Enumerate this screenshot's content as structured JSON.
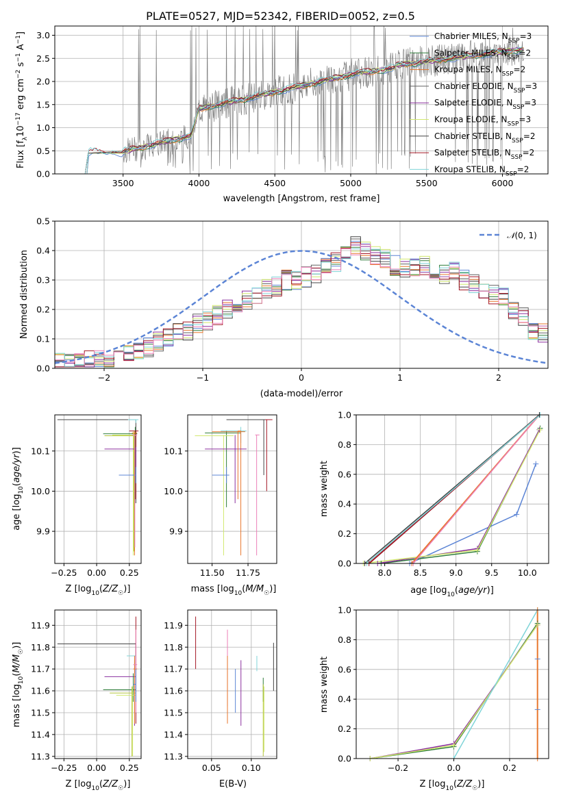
{
  "colors": {
    "blue": "#5b84d5",
    "orange": "#e8772d",
    "darkgreen": "#2f7d3a",
    "red": "#a31523",
    "purple": "#8a2f9e",
    "brown": "#7b4b2a",
    "pink": "#ec7fb7",
    "gray": "#606060",
    "olive": "#b3c43a",
    "cyan": "#7fd4d8",
    "yellowgreen": "#d1e86e",
    "black": "#444444"
  },
  "chart_data": [
    {
      "type": "line",
      "title": "PLATE=0527, MJD=52342, FIBERID=0052, z=0.5",
      "xlabel": "wavelength [Angstrom, rest frame]",
      "ylabel": "Flux [f_λ 10^-17 erg cm^-2 s^-1 A^-1]",
      "xlim": [
        3050,
        6300
      ],
      "ylim": [
        0,
        3.2
      ],
      "xticks": [
        3500,
        4000,
        4500,
        5000,
        5500,
        6000
      ],
      "yticks": [
        0.0,
        0.5,
        1.0,
        1.5,
        2.0,
        2.5,
        3.0
      ],
      "observed_range": [
        3500,
        6140
      ],
      "model_range": [
        3250,
        6140
      ],
      "legend": "top-right",
      "series": [
        {
          "name": "Chabrier MILES, N_SSP=3",
          "color": "#5b84d5"
        },
        {
          "name": "Salpeter MILES, N_SSP=2",
          "color": "#2f7d3a"
        },
        {
          "name": "Kroupa MILES, N_SSP=2",
          "color": "#e8772d"
        },
        {
          "name": "Chabrier ELODIE, N_SSP=3",
          "color": "#606060"
        },
        {
          "name": "Salpeter ELODIE, N_SSP=3",
          "color": "#8a2f9e"
        },
        {
          "name": "Kroupa ELODIE, N_SSP=3",
          "color": "#d1e86e"
        },
        {
          "name": "Chabrier STELIB, N_SSP=2",
          "color": "#444444"
        },
        {
          "name": "Salpeter STELIB, N_SSP=2",
          "color": "#a31523"
        },
        {
          "name": "Kroupa STELIB, N_SSP=2",
          "color": "#7fd4d8"
        }
      ]
    },
    {
      "type": "bar",
      "xlabel": "(data-model)/error",
      "ylabel": "Normed distribution",
      "xlim": [
        -2.5,
        2.5
      ],
      "ylim": [
        0,
        0.5
      ],
      "xticks": [
        -2,
        -1,
        0,
        1,
        2
      ],
      "yticks": [
        0.0,
        0.1,
        0.2,
        0.3,
        0.4,
        0.5
      ],
      "bin_width": 0.1,
      "legend": "top-right",
      "reference_name": "N(0,1)",
      "representative_hist": [
        0.025,
        0.02,
        0.02,
        0.025,
        0.03,
        0.03,
        0.04,
        0.05,
        0.06,
        0.07,
        0.09,
        0.1,
        0.12,
        0.13,
        0.15,
        0.16,
        0.18,
        0.2,
        0.2,
        0.23,
        0.25,
        0.27,
        0.28,
        0.3,
        0.3,
        0.31,
        0.32,
        0.34,
        0.36,
        0.38,
        0.42,
        0.4,
        0.38,
        0.37,
        0.35,
        0.34,
        0.34,
        0.35,
        0.33,
        0.32,
        0.33,
        0.3,
        0.29,
        0.27,
        0.25,
        0.24,
        0.2,
        0.18,
        0.13,
        0.12
      ]
    },
    {
      "type": "scatter",
      "xlabel": "Z [log10(Z/Z☉)]",
      "ylabel": "age  [log10(age/yr)]",
      "xlim": [
        -0.32,
        0.34
      ],
      "ylim": [
        9.82,
        10.19
      ],
      "xticks": [
        -0.25,
        0.0,
        0.25
      ],
      "yticks": [
        9.9,
        10.0,
        10.1
      ]
    },
    {
      "type": "scatter",
      "xlabel": "mass [log10(M/M☉)]",
      "ylabel": "",
      "xlim": [
        11.33,
        11.95
      ],
      "ylim": [
        9.82,
        10.19
      ],
      "xticks": [
        11.5,
        11.75
      ],
      "yticks": [
        9.9,
        10.0,
        10.1
      ]
    },
    {
      "type": "line",
      "xlabel": "age  [log10(age/yr)]",
      "ylabel": "mass weight",
      "xlim": [
        7.6,
        10.3
      ],
      "ylim": [
        0,
        1.0
      ],
      "xticks": [
        8.0,
        8.5,
        9.0,
        9.5,
        10.0
      ],
      "yticks": [
        0.0,
        0.2,
        0.4,
        0.6,
        0.8,
        1.0
      ],
      "series": [
        {
          "color": "#5b84d5",
          "x": [
            8.35,
            9.85,
            10.12
          ],
          "y": [
            0.0,
            0.33,
            0.67
          ]
        },
        {
          "color": "#2f7d3a",
          "x": [
            7.95,
            9.3,
            10.18
          ],
          "y": [
            0.0,
            0.08,
            0.91
          ]
        },
        {
          "color": "#8a2f9e",
          "x": [
            7.9,
            9.3,
            10.17
          ],
          "y": [
            0.0,
            0.1,
            0.9
          ]
        },
        {
          "color": "#d1e86e",
          "x": [
            7.7,
            9.3,
            10.18
          ],
          "y": [
            0.0,
            0.09,
            0.9
          ]
        },
        {
          "color": "#e8772d",
          "x": [
            8.38,
            10.17
          ],
          "y": [
            0.0,
            1.0
          ]
        },
        {
          "color": "#ec7fb7",
          "x": [
            8.4,
            10.17
          ],
          "y": [
            0.0,
            1.0
          ]
        },
        {
          "color": "#a31523",
          "x": [
            7.78,
            10.17
          ],
          "y": [
            0.0,
            1.0
          ]
        },
        {
          "color": "#444444",
          "x": [
            7.72,
            10.17
          ],
          "y": [
            0.0,
            1.0
          ]
        },
        {
          "color": "#7fd4d8",
          "x": [
            7.75,
            10.18
          ],
          "y": [
            0.0,
            1.0
          ]
        }
      ]
    },
    {
      "type": "scatter",
      "xlabel": "Z [log10(Z/Z☉)]",
      "ylabel": "mass [log10(M/M☉)]",
      "xlim": [
        -0.32,
        0.34
      ],
      "ylim": [
        11.29,
        11.97
      ],
      "xticks": [
        -0.25,
        0.0,
        0.25
      ],
      "yticks": [
        11.3,
        11.4,
        11.5,
        11.6,
        11.7,
        11.8,
        11.9
      ]
    },
    {
      "type": "scatter",
      "xlabel": "E(B-V)",
      "ylabel": "",
      "xlim": [
        0.02,
        0.132
      ],
      "ylim": [
        11.29,
        11.97
      ],
      "xticks": [
        0.05,
        0.1
      ],
      "yticks": [
        11.3,
        11.4,
        11.5,
        11.6,
        11.7,
        11.8,
        11.9
      ]
    },
    {
      "type": "line",
      "xlabel": "Z [log10(Z/Z☉)]",
      "ylabel": "mass weight",
      "xlim": [
        -0.35,
        0.34
      ],
      "ylim": [
        0,
        1.0
      ],
      "xticks": [
        -0.2,
        0.0,
        0.2
      ],
      "yticks": [
        0.0,
        0.2,
        0.4,
        0.6,
        0.8,
        1.0
      ],
      "series": [
        {
          "color": "#2f7d3a",
          "x": [
            -0.3,
            0.0,
            0.3
          ],
          "y": [
            0.0,
            0.08,
            0.91
          ]
        },
        {
          "color": "#8a2f9e",
          "x": [
            -0.3,
            0.0,
            0.3
          ],
          "y": [
            0.0,
            0.1,
            0.9
          ]
        },
        {
          "color": "#d1e86e",
          "x": [
            -0.3,
            0.0,
            0.3
          ],
          "y": [
            0.0,
            0.09,
            0.9
          ]
        },
        {
          "color": "#7fd4d8",
          "x": [
            0.0,
            0.3
          ],
          "y": [
            0.0,
            1.0
          ]
        },
        {
          "color": "#e8772d",
          "x": [
            0.3,
            0.3
          ],
          "y": [
            0.0,
            1.0
          ]
        }
      ]
    }
  ]
}
